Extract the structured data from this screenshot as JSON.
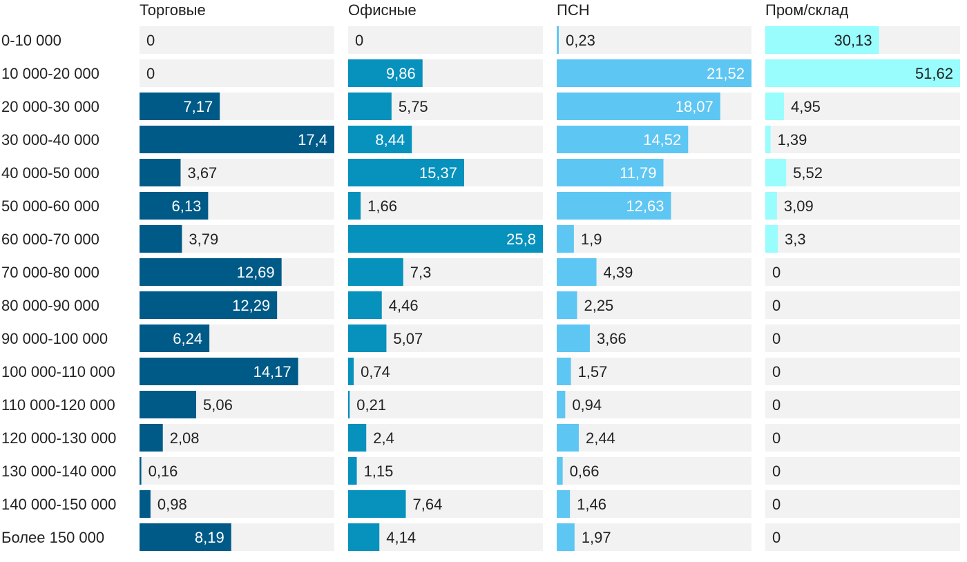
{
  "chart_data": {
    "type": "bar",
    "orientation": "horizontal",
    "layout": "small-multiples",
    "categories": [
      "0-10 000",
      "10 000-20 000",
      "20 000-30 000",
      "30 000-40 000",
      "40 000-50 000",
      "50 000-60 000",
      "60 000-70 000",
      "70 000-80 000",
      "80 000-90 000",
      "90 000-100 000",
      "100 000-110 000",
      "110 000-120 000",
      "120 000-130 000",
      "130 000-140 000",
      "140 000-150 000",
      "Более 150 000"
    ],
    "series": [
      {
        "name": "Торговые",
        "color": "#005a87",
        "values": [
          0,
          0,
          7.17,
          17.4,
          3.67,
          6.13,
          3.79,
          12.69,
          12.29,
          6.24,
          14.17,
          5.06,
          2.08,
          0.16,
          0.98,
          8.19
        ],
        "labels": [
          "0",
          "0",
          "7,17",
          "17,4",
          "3,67",
          "6,13",
          "3,79",
          "12,69",
          "12,29",
          "6,24",
          "14,17",
          "5,06",
          "2,08",
          "0,16",
          "0,98",
          "8,19"
        ]
      },
      {
        "name": "Офисные",
        "color": "#0791bd",
        "values": [
          0,
          9.86,
          5.75,
          8.44,
          15.37,
          1.66,
          25.8,
          7.3,
          4.46,
          5.07,
          0.74,
          0.21,
          2.4,
          1.15,
          7.64,
          4.14
        ],
        "labels": [
          "0",
          "9,86",
          "5,75",
          "8,44",
          "15,37",
          "1,66",
          "25,8",
          "7,3",
          "4,46",
          "5,07",
          "0,74",
          "0,21",
          "2,4",
          "1,15",
          "7,64",
          "4,14"
        ]
      },
      {
        "name": "ПСН",
        "color": "#5ec6f3",
        "values": [
          0.23,
          21.52,
          18.07,
          14.52,
          11.79,
          12.63,
          1.9,
          4.39,
          2.25,
          3.66,
          1.57,
          0.94,
          2.44,
          0.66,
          1.46,
          1.97
        ],
        "labels": [
          "0,23",
          "21,52",
          "18,07",
          "14,52",
          "11,79",
          "12,63",
          "1,9",
          "4,39",
          "2,25",
          "3,66",
          "1,57",
          "0,94",
          "2,44",
          "0,66",
          "1,46",
          "1,97"
        ]
      },
      {
        "name": "Пром/склад",
        "color": "#99fcfd",
        "values": [
          30.13,
          51.62,
          4.95,
          1.39,
          5.52,
          3.09,
          3.3,
          0,
          0,
          0,
          0,
          0,
          0,
          0,
          0,
          0
        ],
        "labels": [
          "30,13",
          "51,62",
          "4,95",
          "1,39",
          "5,52",
          "3,09",
          "3,3",
          "0",
          "0",
          "0",
          "0",
          "0",
          "0",
          "0",
          "0",
          "0"
        ]
      }
    ],
    "colors": {
      "track": "#f2f2f2",
      "text_dark": "#222222",
      "text_light": "#ffffff"
    }
  }
}
